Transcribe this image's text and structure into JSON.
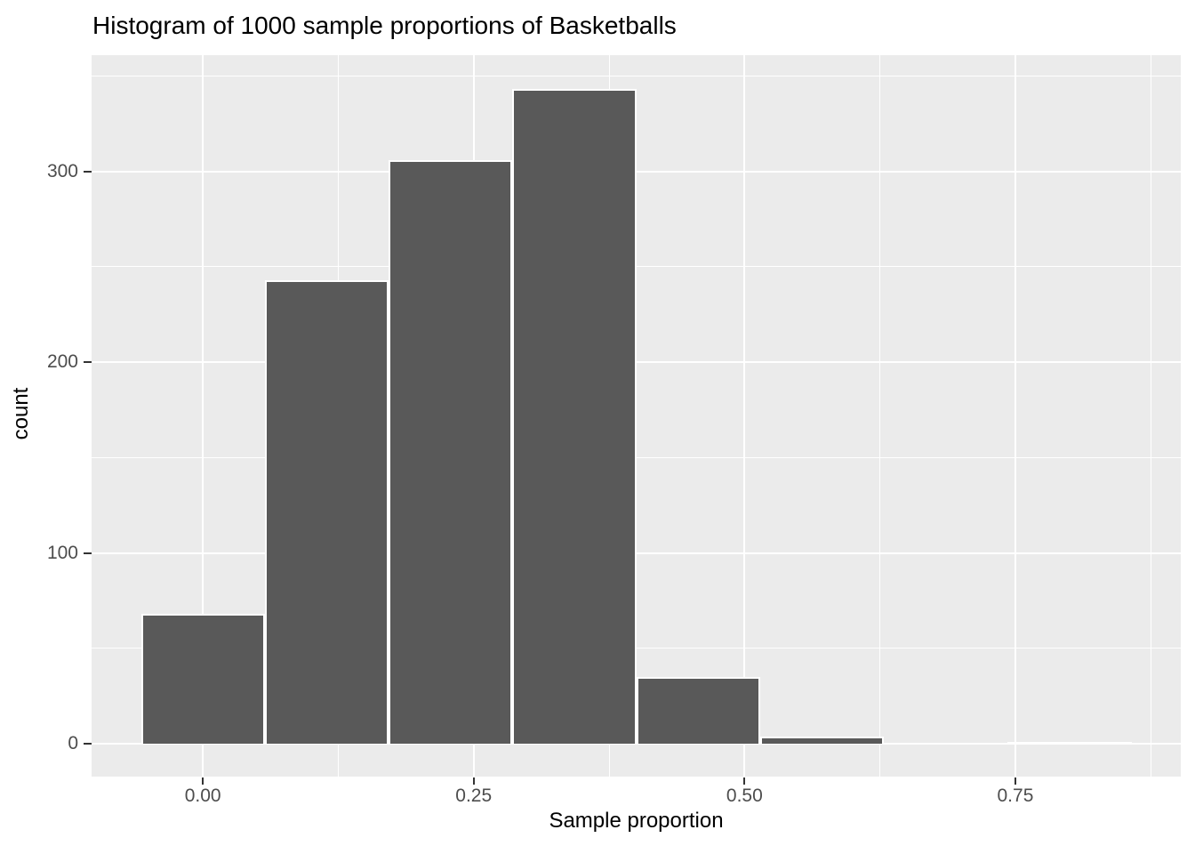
{
  "title": "Histogram of 1000 sample proportions of Basketballs",
  "chart_data": {
    "type": "bar",
    "subtype": "histogram",
    "title": "Histogram of 1000 sample proportions of Basketballs",
    "xlabel": "Sample proportion",
    "ylabel": "count",
    "bin_start": -0.05714,
    "bin_width": 0.11429,
    "bin_centers": [
      0.0,
      0.114,
      0.229,
      0.343,
      0.457,
      0.571,
      0.686,
      0.8
    ],
    "counts": [
      68,
      243,
      306,
      343,
      35,
      4,
      0,
      1
    ],
    "total_samples": 1000,
    "xlim": [
      -0.1027,
      0.9027
    ],
    "ylim": [
      -17.2,
      360.9
    ],
    "x_ticks": [
      {
        "value": 0.0,
        "label": "0.00"
      },
      {
        "value": 0.25,
        "label": "0.25"
      },
      {
        "value": 0.5,
        "label": "0.50"
      },
      {
        "value": 0.75,
        "label": "0.75"
      }
    ],
    "y_ticks": [
      {
        "value": 0,
        "label": "0"
      },
      {
        "value": 100,
        "label": "100"
      },
      {
        "value": 200,
        "label": "200"
      },
      {
        "value": 300,
        "label": "300"
      }
    ],
    "x_minor": [
      0.125,
      0.375,
      0.625,
      0.875
    ],
    "y_minor": [
      50,
      150,
      250,
      350
    ],
    "grid": "on",
    "legend": "none",
    "colors": {
      "bar_fill": "#595959",
      "bar_border": "#FFFFFF",
      "panel_bg": "#EBEBEB",
      "gridline": "#FFFFFF",
      "tick_mark": "#333333",
      "tick_label": "#4D4D4D",
      "text": "#000000"
    }
  }
}
